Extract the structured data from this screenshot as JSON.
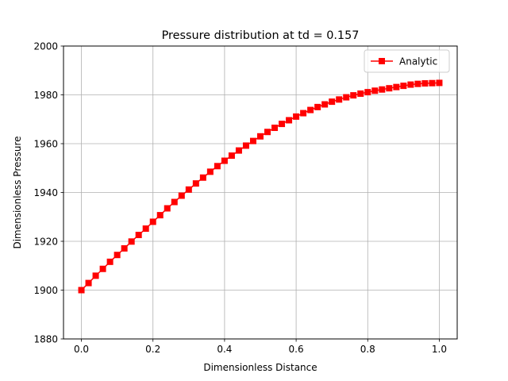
{
  "chart_data": {
    "type": "line",
    "title": "Pressure distribution at td = 0.157",
    "xlabel": "Dimensionless Distance",
    "ylabel": "Dimensionless Pressure",
    "xlim": [
      -0.05,
      1.05
    ],
    "ylim": [
      1880,
      2000
    ],
    "xticks": [
      0.0,
      0.2,
      0.4,
      0.6,
      0.8,
      1.0
    ],
    "xtick_labels": [
      "0.0",
      "0.2",
      "0.4",
      "0.6",
      "0.8",
      "1.0"
    ],
    "yticks": [
      1880,
      1900,
      1920,
      1940,
      1960,
      1980,
      2000
    ],
    "ytick_labels": [
      "1880",
      "1900",
      "1920",
      "1940",
      "1960",
      "1980",
      "2000"
    ],
    "grid": true,
    "legend_position": "top-right",
    "series": [
      {
        "name": "Analytic",
        "color": "#ff0000",
        "marker": "square",
        "x": [
          0.0,
          0.02,
          0.04,
          0.06,
          0.08,
          0.1,
          0.12,
          0.14,
          0.16,
          0.18,
          0.2,
          0.22,
          0.24,
          0.26,
          0.28,
          0.3,
          0.32,
          0.34,
          0.36,
          0.38,
          0.4,
          0.42,
          0.44,
          0.46,
          0.48,
          0.5,
          0.52,
          0.54,
          0.56,
          0.58,
          0.6,
          0.62,
          0.64,
          0.66,
          0.68,
          0.7,
          0.72,
          0.74,
          0.76,
          0.78,
          0.8,
          0.82,
          0.84,
          0.86,
          0.88,
          0.9,
          0.92,
          0.94,
          0.96,
          0.98,
          1.0
        ],
        "y": [
          1900.0,
          1902.9,
          1905.9,
          1908.7,
          1911.6,
          1914.4,
          1917.1,
          1919.9,
          1922.6,
          1925.2,
          1928.0,
          1930.7,
          1933.5,
          1936.1,
          1938.7,
          1941.2,
          1943.7,
          1946.1,
          1948.5,
          1950.8,
          1953.0,
          1955.1,
          1957.2,
          1959.2,
          1961.1,
          1963.0,
          1964.8,
          1966.5,
          1968.1,
          1969.6,
          1971.1,
          1972.5,
          1973.8,
          1975.0,
          1976.1,
          1977.2,
          1978.1,
          1979.0,
          1979.8,
          1980.5,
          1981.1,
          1981.7,
          1982.2,
          1982.7,
          1983.2,
          1983.7,
          1984.2,
          1984.5,
          1984.7,
          1984.8,
          1984.9
        ]
      }
    ]
  }
}
